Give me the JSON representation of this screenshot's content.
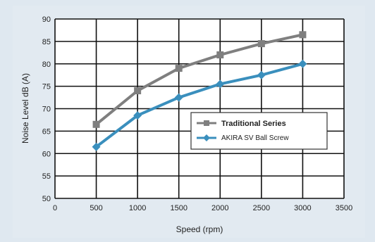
{
  "chart_data": {
    "type": "line",
    "xlabel": "Speed (rpm)",
    "ylabel": "Noise Level dB (A)",
    "xlim": [
      0,
      3500
    ],
    "ylim": [
      50,
      90
    ],
    "x_ticks": [
      "0",
      "500",
      "1000",
      "1500",
      "2000",
      "2500",
      "3000",
      "3500"
    ],
    "y_ticks": [
      "50",
      "55",
      "60",
      "65",
      "70",
      "75",
      "80",
      "85",
      "90"
    ],
    "grid": true,
    "legend_placement": "center-right",
    "series": [
      {
        "name": "Traditional Series",
        "color": "#7f7f7f",
        "marker": "square",
        "x": [
          500,
          1000,
          1500,
          2000,
          2500,
          3000
        ],
        "y": [
          66.5,
          74,
          79,
          82,
          84.5,
          86.5
        ]
      },
      {
        "name": "AKIRA SV Ball Screw",
        "color": "#3a8fbd",
        "marker": "diamond",
        "x": [
          500,
          1000,
          1500,
          2000,
          2500,
          3000
        ],
        "y": [
          61.5,
          68.5,
          72.5,
          75.5,
          77.5,
          80
        ]
      }
    ]
  }
}
